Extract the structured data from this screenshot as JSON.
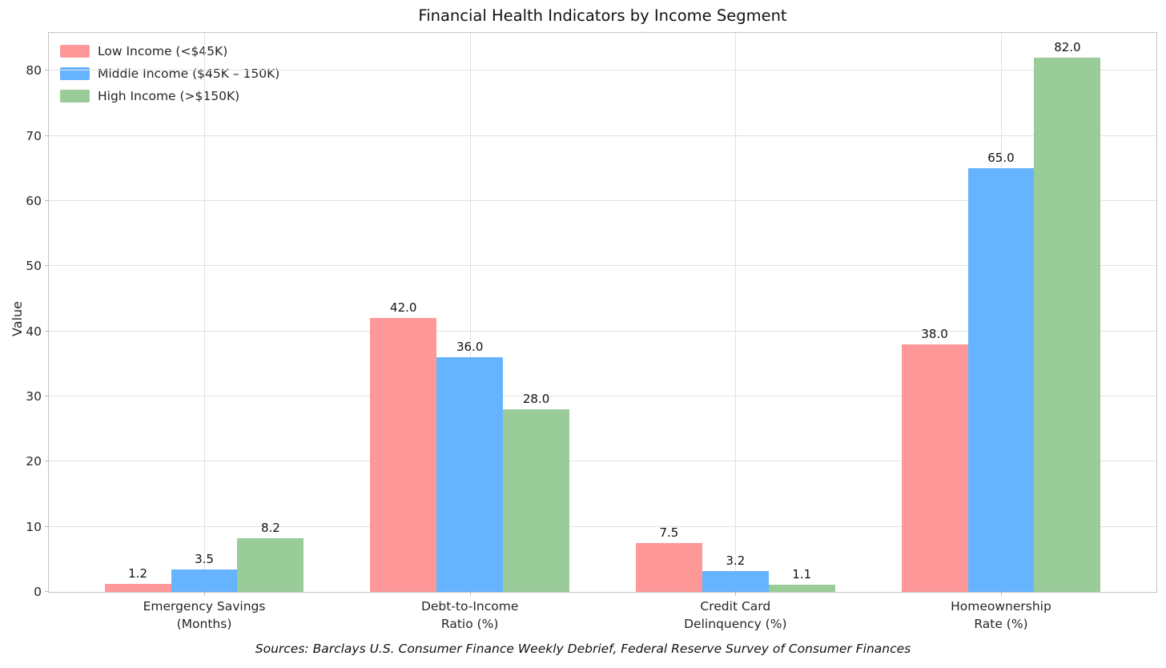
{
  "chart_data": {
    "type": "bar",
    "title": "Financial Health Indicators by Income Segment",
    "xlabel": "",
    "ylabel": "Value",
    "categories": [
      "Emergency Savings\n(Months)",
      "Debt-to-Income\nRatio (%)",
      "Credit Card\nDelinquency (%)",
      "Homeownership\nRate (%)"
    ],
    "series": [
      {
        "name": "Low Income (<$45K)",
        "color": "#ff9999",
        "values": [
          1.2,
          42.0,
          7.5,
          38.0
        ]
      },
      {
        "name": "Middle Income ($45K – 150K)",
        "color": "#66b3ff",
        "values": [
          3.5,
          36.0,
          3.2,
          65.0
        ]
      },
      {
        "name": "High Income (>$150K)",
        "color": "#99cc99",
        "values": [
          8.2,
          28.0,
          1.1,
          82.0
        ]
      }
    ],
    "value_labels_decimals": 1,
    "yticks": [
      0,
      10,
      20,
      30,
      40,
      50,
      60,
      70,
      80
    ],
    "ylim": [
      0,
      85.8
    ],
    "grid": true,
    "legend_position": "upper left",
    "source_note": "Sources: Barclays U.S. Consumer Finance Weekly Debrief, Federal Reserve Survey of Consumer Finances"
  }
}
